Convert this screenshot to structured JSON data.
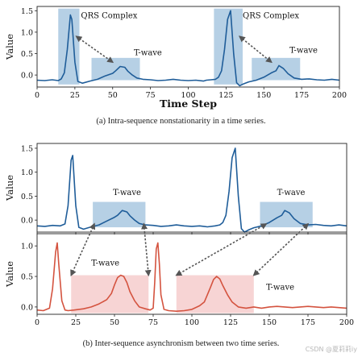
{
  "captions": {
    "a": "(a)  Intra-sequence nonstationarity in a time series.",
    "b": "(b)  Inter-sequence asynchronism between two time series."
  },
  "watermark": "CSDN @夏莉莉iy",
  "colors": {
    "blue_line": "#1f5d99",
    "blue_box": "#a9c8e0",
    "red_line": "#d4533f",
    "red_box": "#f6cccc",
    "arrow": "#555555"
  },
  "chart_data": [
    {
      "type": "line",
      "xlabel": "Time Step",
      "ylabel": "Value",
      "xlim": [
        0,
        200
      ],
      "ylim": [
        -0.28,
        1.6
      ],
      "xticks": [
        0,
        25,
        50,
        75,
        100,
        125,
        150,
        175,
        200
      ],
      "yticks": [
        0.0,
        0.5,
        1.0,
        1.5
      ],
      "series": [
        {
          "color": "blue",
          "x": [
            0,
            5,
            10,
            14,
            16,
            18,
            20,
            22,
            23,
            25,
            27,
            30,
            35,
            40,
            45,
            50,
            52,
            55,
            58,
            60,
            63,
            66,
            70,
            75,
            80,
            85,
            90,
            95,
            100,
            105,
            110,
            112,
            115,
            118,
            120,
            122,
            124,
            126,
            128,
            130,
            132,
            134,
            137,
            140,
            145,
            150,
            155,
            158,
            160,
            163,
            166,
            170,
            175,
            180,
            185,
            190,
            195,
            200
          ],
          "y": [
            -0.12,
            -0.13,
            -0.11,
            -0.13,
            -0.09,
            0.05,
            0.6,
            1.4,
            1.3,
            0.3,
            -0.15,
            -0.19,
            -0.14,
            -0.1,
            -0.02,
            0.04,
            0.1,
            0.2,
            0.18,
            0.09,
            0.0,
            -0.07,
            -0.1,
            -0.11,
            -0.13,
            -0.12,
            -0.1,
            -0.12,
            -0.13,
            -0.12,
            -0.14,
            -0.12,
            -0.11,
            -0.1,
            -0.05,
            0.1,
            0.6,
            1.3,
            1.5,
            0.5,
            -0.18,
            -0.25,
            -0.2,
            -0.16,
            -0.12,
            -0.05,
            0.05,
            0.1,
            0.22,
            0.15,
            0.03,
            -0.07,
            -0.1,
            -0.09,
            -0.11,
            -0.12,
            -0.1,
            -0.12
          ]
        }
      ],
      "highlights": [
        {
          "label": "QRS Complex",
          "x0": 14,
          "x1": 28,
          "y0": -0.22,
          "y1": 1.55
        },
        {
          "label": "T-wave",
          "x0": 36,
          "x1": 68,
          "y0": -0.12,
          "y1": 0.4
        },
        {
          "label": "QRS Complex",
          "x0": 117,
          "x1": 136,
          "y0": -0.22,
          "y1": 1.55
        },
        {
          "label": "T-wave",
          "x0": 142,
          "x1": 174,
          "y0": -0.12,
          "y1": 0.4
        }
      ],
      "annotations": [
        {
          "text": "QRS Complex",
          "x": 29,
          "y": 1.33
        },
        {
          "text": "T-wave",
          "x": 64,
          "y": 0.46
        },
        {
          "text": "QRS Complex",
          "x": 136,
          "y": 1.33
        },
        {
          "text": "T-wave",
          "x": 167,
          "y": 0.52
        }
      ],
      "arrows": [
        {
          "from": [
            26,
            0.9
          ],
          "to": [
            50,
            0.3
          ]
        },
        {
          "from": [
            134,
            0.9
          ],
          "to": [
            155,
            0.3
          ]
        }
      ]
    },
    {
      "type": "line",
      "xlabel": "",
      "ylabel": "Value",
      "xlim": [
        0,
        200
      ],
      "ylim": [
        -0.25,
        1.6
      ],
      "xticks": [
        0,
        25,
        50,
        75,
        100,
        125,
        150,
        175,
        200
      ],
      "show_xtick_labels": false,
      "yticks": [
        0.0,
        0.5,
        1.0,
        1.5
      ],
      "series": [
        {
          "color": "blue",
          "x": [
            0,
            5,
            10,
            15,
            18,
            20,
            22,
            23,
            25,
            27,
            30,
            35,
            40,
            45,
            50,
            52,
            55,
            58,
            60,
            63,
            66,
            70,
            75,
            80,
            85,
            90,
            95,
            100,
            105,
            110,
            115,
            118,
            120,
            122,
            124,
            126,
            128,
            130,
            132,
            134,
            137,
            140,
            145,
            150,
            155,
            158,
            160,
            163,
            166,
            170,
            175,
            180,
            185,
            190,
            195,
            200
          ],
          "y": [
            -0.12,
            -0.13,
            -0.11,
            -0.12,
            -0.08,
            0.3,
            1.25,
            1.35,
            0.3,
            -0.15,
            -0.19,
            -0.14,
            -0.1,
            -0.02,
            0.06,
            0.1,
            0.2,
            0.17,
            0.09,
            0.0,
            -0.07,
            -0.1,
            -0.11,
            -0.13,
            -0.12,
            -0.1,
            -0.12,
            -0.13,
            -0.12,
            -0.14,
            -0.12,
            -0.1,
            -0.05,
            0.1,
            0.6,
            1.3,
            1.5,
            0.5,
            -0.18,
            -0.25,
            -0.2,
            -0.16,
            -0.12,
            -0.05,
            0.05,
            0.1,
            0.2,
            0.15,
            0.03,
            -0.07,
            -0.1,
            -0.09,
            -0.11,
            -0.12,
            -0.1,
            -0.12
          ]
        }
      ],
      "highlights": [
        {
          "label": "T-wave",
          "x0": 36,
          "x1": 70,
          "y0": -0.15,
          "y1": 0.38
        },
        {
          "label": "T-wave",
          "x0": 144,
          "x1": 178,
          "y0": -0.15,
          "y1": 0.38
        }
      ],
      "annotations": [
        {
          "text": "T-wave",
          "x": 49,
          "y": 0.52
        },
        {
          "text": "T-wave",
          "x": 155,
          "y": 0.52
        }
      ]
    },
    {
      "type": "line",
      "xlabel": "",
      "ylabel": "Value",
      "xlim": [
        0,
        200
      ],
      "ylim": [
        -0.12,
        1.2
      ],
      "xticks": [
        0,
        25,
        50,
        75,
        100,
        125,
        150,
        175,
        200
      ],
      "yticks": [
        0.0,
        0.5,
        1.0
      ],
      "series": [
        {
          "color": "red",
          "x": [
            0,
            4,
            8,
            10,
            12,
            13,
            14,
            16,
            18,
            20,
            24,
            30,
            35,
            40,
            45,
            48,
            50,
            52,
            54,
            56,
            58,
            60,
            63,
            66,
            70,
            73,
            75,
            76,
            77,
            78,
            79,
            80,
            82,
            85,
            90,
            95,
            100,
            105,
            108,
            110,
            112,
            114,
            116,
            118,
            120,
            123,
            126,
            130,
            135,
            140,
            145,
            150,
            155,
            160,
            165,
            170,
            175,
            180,
            185,
            190,
            195,
            200
          ],
          "y": [
            -0.05,
            -0.06,
            -0.02,
            0.3,
            0.9,
            1.05,
            0.7,
            0.1,
            -0.05,
            -0.06,
            -0.05,
            -0.03,
            0.0,
            0.05,
            0.12,
            0.22,
            0.36,
            0.48,
            0.52,
            0.5,
            0.4,
            0.25,
            0.1,
            0.0,
            -0.03,
            -0.05,
            -0.02,
            0.4,
            0.95,
            1.05,
            0.7,
            0.2,
            -0.04,
            -0.06,
            -0.07,
            -0.06,
            -0.04,
            0.02,
            0.08,
            0.2,
            0.32,
            0.45,
            0.5,
            0.46,
            0.35,
            0.2,
            0.08,
            0.0,
            -0.02,
            0.0,
            -0.02,
            0.0,
            0.01,
            0.0,
            -0.01,
            0.0,
            0.01,
            0.0,
            -0.01,
            0.0,
            -0.01,
            -0.02
          ]
        }
      ],
      "highlights": [
        {
          "label": "T-wave",
          "x0": 22,
          "x1": 72,
          "y0": -0.1,
          "y1": 0.52
        },
        {
          "label": "T-wave",
          "x0": 90,
          "x1": 140,
          "y0": -0.1,
          "y1": 0.52
        }
      ],
      "annotations": [
        {
          "text": "T-wave",
          "x": 35,
          "y": 0.68
        },
        {
          "text": "T-wave",
          "x": 148,
          "y": 0.28
        }
      ],
      "arrows": [
        {
          "from": [
            37,
            -0.08
          ],
          "to": [
            22,
            0.52
          ],
          "panels": [
            1,
            2
          ]
        },
        {
          "from": [
            69,
            -0.08
          ],
          "to": [
            72,
            0.52
          ],
          "panels": [
            1,
            2
          ]
        },
        {
          "from": [
            148,
            -0.08
          ],
          "to": [
            90,
            0.52
          ],
          "panels": [
            1,
            2
          ]
        },
        {
          "from": [
            175,
            -0.08
          ],
          "to": [
            140,
            0.52
          ],
          "panels": [
            1,
            2
          ]
        }
      ]
    }
  ]
}
